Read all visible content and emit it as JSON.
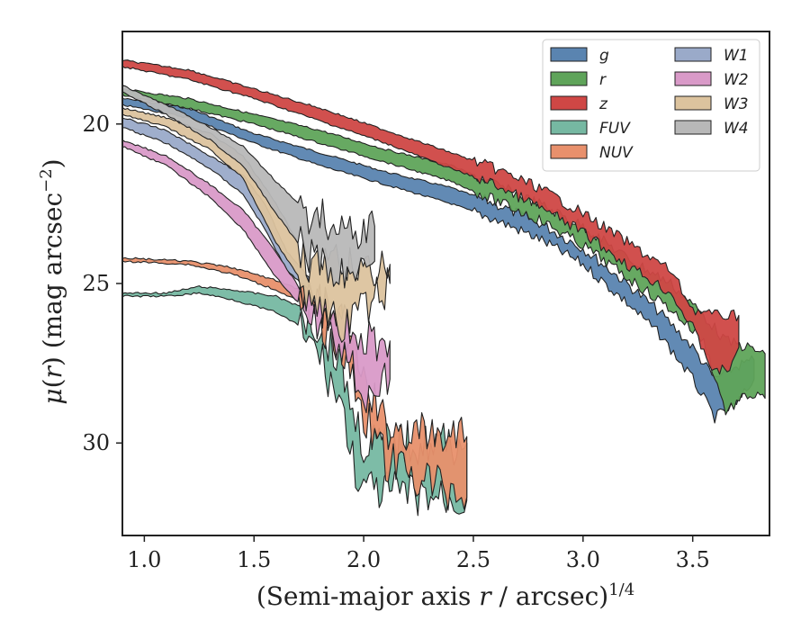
{
  "chart_data": {
    "type": "area",
    "xlabel_main": "(Semi-major axis ",
    "xlabel_var": "r",
    "xlabel_rest": " / arcsec)",
    "xlabel_sup": "1/4",
    "ylabel_mu": "μ",
    "ylabel_paren_open": "(",
    "ylabel_var": "r",
    "ylabel_paren_close": ")",
    "ylabel_units": " (mag arcsec",
    "ylabel_sup": "−2",
    "ylabel_end": ")",
    "xlim": [
      0.9,
      3.85
    ],
    "ylim": [
      32.9,
      17.1
    ],
    "y_inverted": true,
    "x_ticks": [
      "1.0",
      "1.5",
      "2.0",
      "2.5",
      "3.0",
      "3.5"
    ],
    "x_tick_values": [
      1.0,
      1.5,
      2.0,
      2.5,
      3.0,
      3.5
    ],
    "y_ticks": [
      "20",
      "25",
      "30"
    ],
    "y_tick_values": [
      20,
      25,
      30
    ],
    "legend_position": "top-right",
    "legend_columns": 2,
    "series": [
      {
        "name": "g",
        "color": "#5a84b0",
        "upper": [
          [
            0.9,
            19.2
          ],
          [
            1.2,
            19.5
          ],
          [
            1.5,
            20.3
          ],
          [
            1.8,
            20.9
          ],
          [
            2.1,
            21.5
          ],
          [
            2.4,
            22.0
          ],
          [
            2.6,
            22.5
          ],
          [
            2.8,
            23.1
          ],
          [
            3.0,
            23.9
          ],
          [
            3.2,
            25.0
          ],
          [
            3.35,
            25.9
          ],
          [
            3.5,
            27.0
          ],
          [
            3.6,
            28.0
          ],
          [
            3.7,
            27.6
          ],
          [
            3.78,
            27.4
          ]
        ],
        "lower": [
          [
            0.9,
            19.4
          ],
          [
            1.2,
            19.8
          ],
          [
            1.5,
            20.6
          ],
          [
            1.8,
            21.3
          ],
          [
            2.1,
            21.9
          ],
          [
            2.4,
            22.5
          ],
          [
            2.6,
            23.0
          ],
          [
            2.8,
            23.6
          ],
          [
            3.0,
            24.4
          ],
          [
            3.2,
            25.6
          ],
          [
            3.35,
            26.6
          ],
          [
            3.5,
            28.0
          ],
          [
            3.6,
            29.2
          ],
          [
            3.7,
            28.8
          ],
          [
            3.78,
            28.0
          ]
        ]
      },
      {
        "name": "r",
        "color": "#5fa45a",
        "upper": [
          [
            0.9,
            18.9
          ],
          [
            1.2,
            19.2
          ],
          [
            1.5,
            19.7
          ],
          [
            1.8,
            20.2
          ],
          [
            2.1,
            20.8
          ],
          [
            2.4,
            21.3
          ],
          [
            2.6,
            21.9
          ],
          [
            2.8,
            22.5
          ],
          [
            3.0,
            23.2
          ],
          [
            3.2,
            24.2
          ],
          [
            3.4,
            25.0
          ],
          [
            3.55,
            26.0
          ],
          [
            3.65,
            26.8
          ],
          [
            3.75,
            27.0
          ],
          [
            3.83,
            27.2
          ]
        ],
        "lower": [
          [
            0.9,
            19.1
          ],
          [
            1.2,
            19.5
          ],
          [
            1.5,
            20.0
          ],
          [
            1.8,
            20.6
          ],
          [
            2.1,
            21.2
          ],
          [
            2.4,
            21.8
          ],
          [
            2.6,
            22.4
          ],
          [
            2.8,
            23.0
          ],
          [
            3.0,
            23.8
          ],
          [
            3.2,
            24.8
          ],
          [
            3.4,
            25.8
          ],
          [
            3.55,
            26.8
          ],
          [
            3.65,
            29.0
          ],
          [
            3.75,
            28.5
          ],
          [
            3.83,
            28.6
          ]
        ]
      },
      {
        "name": "z",
        "color": "#cf4745",
        "upper": [
          [
            0.9,
            18.0
          ],
          [
            1.2,
            18.3
          ],
          [
            1.5,
            18.9
          ],
          [
            1.8,
            19.5
          ],
          [
            2.1,
            20.2
          ],
          [
            2.4,
            20.9
          ],
          [
            2.6,
            21.4
          ],
          [
            2.8,
            22.0
          ],
          [
            3.0,
            22.8
          ],
          [
            3.2,
            23.7
          ],
          [
            3.4,
            24.6
          ],
          [
            3.5,
            25.8
          ],
          [
            3.6,
            26.0
          ],
          [
            3.7,
            26.0
          ],
          [
            3.71,
            26.0
          ]
        ],
        "lower": [
          [
            0.9,
            18.2
          ],
          [
            1.2,
            18.6
          ],
          [
            1.5,
            19.2
          ],
          [
            1.8,
            19.9
          ],
          [
            2.1,
            20.6
          ],
          [
            2.4,
            21.4
          ],
          [
            2.6,
            21.9
          ],
          [
            2.8,
            22.6
          ],
          [
            3.0,
            23.4
          ],
          [
            3.2,
            24.4
          ],
          [
            3.4,
            25.3
          ],
          [
            3.5,
            26.4
          ],
          [
            3.6,
            27.8
          ],
          [
            3.68,
            27.6
          ],
          [
            3.71,
            27.0
          ]
        ]
      },
      {
        "name": "FUV",
        "color": "#76b8a2",
        "upper": [
          [
            0.9,
            25.3
          ],
          [
            1.1,
            25.3
          ],
          [
            1.25,
            25.1
          ],
          [
            1.4,
            25.2
          ],
          [
            1.6,
            25.4
          ],
          [
            1.7,
            25.7
          ],
          [
            1.8,
            26.4
          ],
          [
            1.9,
            27.5
          ],
          [
            1.95,
            29.0
          ],
          [
            2.0,
            30.0
          ],
          [
            2.2,
            30.0
          ],
          [
            2.47,
            30.0
          ]
        ],
        "lower": [
          [
            0.9,
            25.4
          ],
          [
            1.1,
            25.4
          ],
          [
            1.25,
            25.3
          ],
          [
            1.4,
            25.5
          ],
          [
            1.6,
            25.9
          ],
          [
            1.7,
            26.3
          ],
          [
            1.8,
            27.3
          ],
          [
            1.9,
            28.8
          ],
          [
            1.95,
            30.5
          ],
          [
            2.0,
            31.5
          ],
          [
            2.2,
            31.6
          ],
          [
            2.47,
            31.8
          ]
        ],
        "jagged": true
      },
      {
        "name": "NUV",
        "color": "#e8906c",
        "upper": [
          [
            0.9,
            24.2
          ],
          [
            1.2,
            24.3
          ],
          [
            1.4,
            24.5
          ],
          [
            1.6,
            24.9
          ],
          [
            1.75,
            25.3
          ],
          [
            1.9,
            26.3
          ],
          [
            2.0,
            28.0
          ],
          [
            2.1,
            29.5
          ],
          [
            2.3,
            29.8
          ],
          [
            2.47,
            29.8
          ]
        ],
        "lower": [
          [
            0.9,
            24.3
          ],
          [
            1.2,
            24.4
          ],
          [
            1.4,
            24.7
          ],
          [
            1.6,
            25.2
          ],
          [
            1.75,
            25.7
          ],
          [
            1.9,
            27.0
          ],
          [
            2.0,
            29.0
          ],
          [
            2.1,
            30.6
          ],
          [
            2.3,
            31.2
          ],
          [
            2.47,
            31.7
          ]
        ],
        "jagged": true
      },
      {
        "name": "W1",
        "color": "#9aaac9",
        "upper": [
          [
            0.9,
            19.8
          ],
          [
            1.1,
            20.2
          ],
          [
            1.3,
            21.0
          ],
          [
            1.45,
            21.6
          ],
          [
            1.55,
            22.5
          ],
          [
            1.65,
            24.0
          ],
          [
            1.75,
            24.8
          ]
        ],
        "lower": [
          [
            0.9,
            20.1
          ],
          [
            1.1,
            20.6
          ],
          [
            1.3,
            21.4
          ],
          [
            1.45,
            22.2
          ],
          [
            1.55,
            23.3
          ],
          [
            1.65,
            24.6
          ],
          [
            1.75,
            25.2
          ]
        ]
      },
      {
        "name": "W2",
        "color": "#d99ac8",
        "upper": [
          [
            0.9,
            20.5
          ],
          [
            1.1,
            21.0
          ],
          [
            1.3,
            21.9
          ],
          [
            1.45,
            22.7
          ],
          [
            1.6,
            24.0
          ],
          [
            1.75,
            25.6
          ],
          [
            1.9,
            26.0
          ],
          [
            2.0,
            26.8
          ],
          [
            2.12,
            26.8
          ]
        ],
        "lower": [
          [
            0.9,
            20.7
          ],
          [
            1.1,
            21.3
          ],
          [
            1.3,
            22.3
          ],
          [
            1.45,
            23.3
          ],
          [
            1.6,
            24.8
          ],
          [
            1.75,
            26.0
          ],
          [
            1.9,
            26.9
          ],
          [
            2.0,
            28.5
          ],
          [
            2.12,
            28.0
          ]
        ],
        "jagged": true
      },
      {
        "name": "W3",
        "color": "#dcc39e",
        "upper": [
          [
            0.9,
            19.5
          ],
          [
            1.1,
            19.8
          ],
          [
            1.3,
            20.3
          ],
          [
            1.45,
            21.0
          ],
          [
            1.6,
            22.5
          ],
          [
            1.75,
            24.3
          ],
          [
            1.9,
            24.5
          ],
          [
            2.12,
            24.4
          ]
        ],
        "lower": [
          [
            0.9,
            19.7
          ],
          [
            1.1,
            20.1
          ],
          [
            1.3,
            20.8
          ],
          [
            1.45,
            21.7
          ],
          [
            1.6,
            23.7
          ],
          [
            1.75,
            25.3
          ],
          [
            1.9,
            26.5
          ],
          [
            2.12,
            25.0
          ]
        ],
        "jagged": true
      },
      {
        "name": "W4",
        "color": "#b8b8b8",
        "upper": [
          [
            0.9,
            18.8
          ],
          [
            1.1,
            19.4
          ],
          [
            1.3,
            20.1
          ],
          [
            1.45,
            20.7
          ],
          [
            1.6,
            21.8
          ],
          [
            1.75,
            22.8
          ],
          [
            1.9,
            23.3
          ],
          [
            2.05,
            23.2
          ]
        ],
        "lower": [
          [
            0.9,
            19.0
          ],
          [
            1.1,
            19.7
          ],
          [
            1.3,
            20.5
          ],
          [
            1.45,
            21.3
          ],
          [
            1.6,
            22.8
          ],
          [
            1.75,
            24.2
          ],
          [
            1.9,
            24.8
          ],
          [
            2.05,
            24.3
          ]
        ],
        "jagged": true
      }
    ]
  }
}
